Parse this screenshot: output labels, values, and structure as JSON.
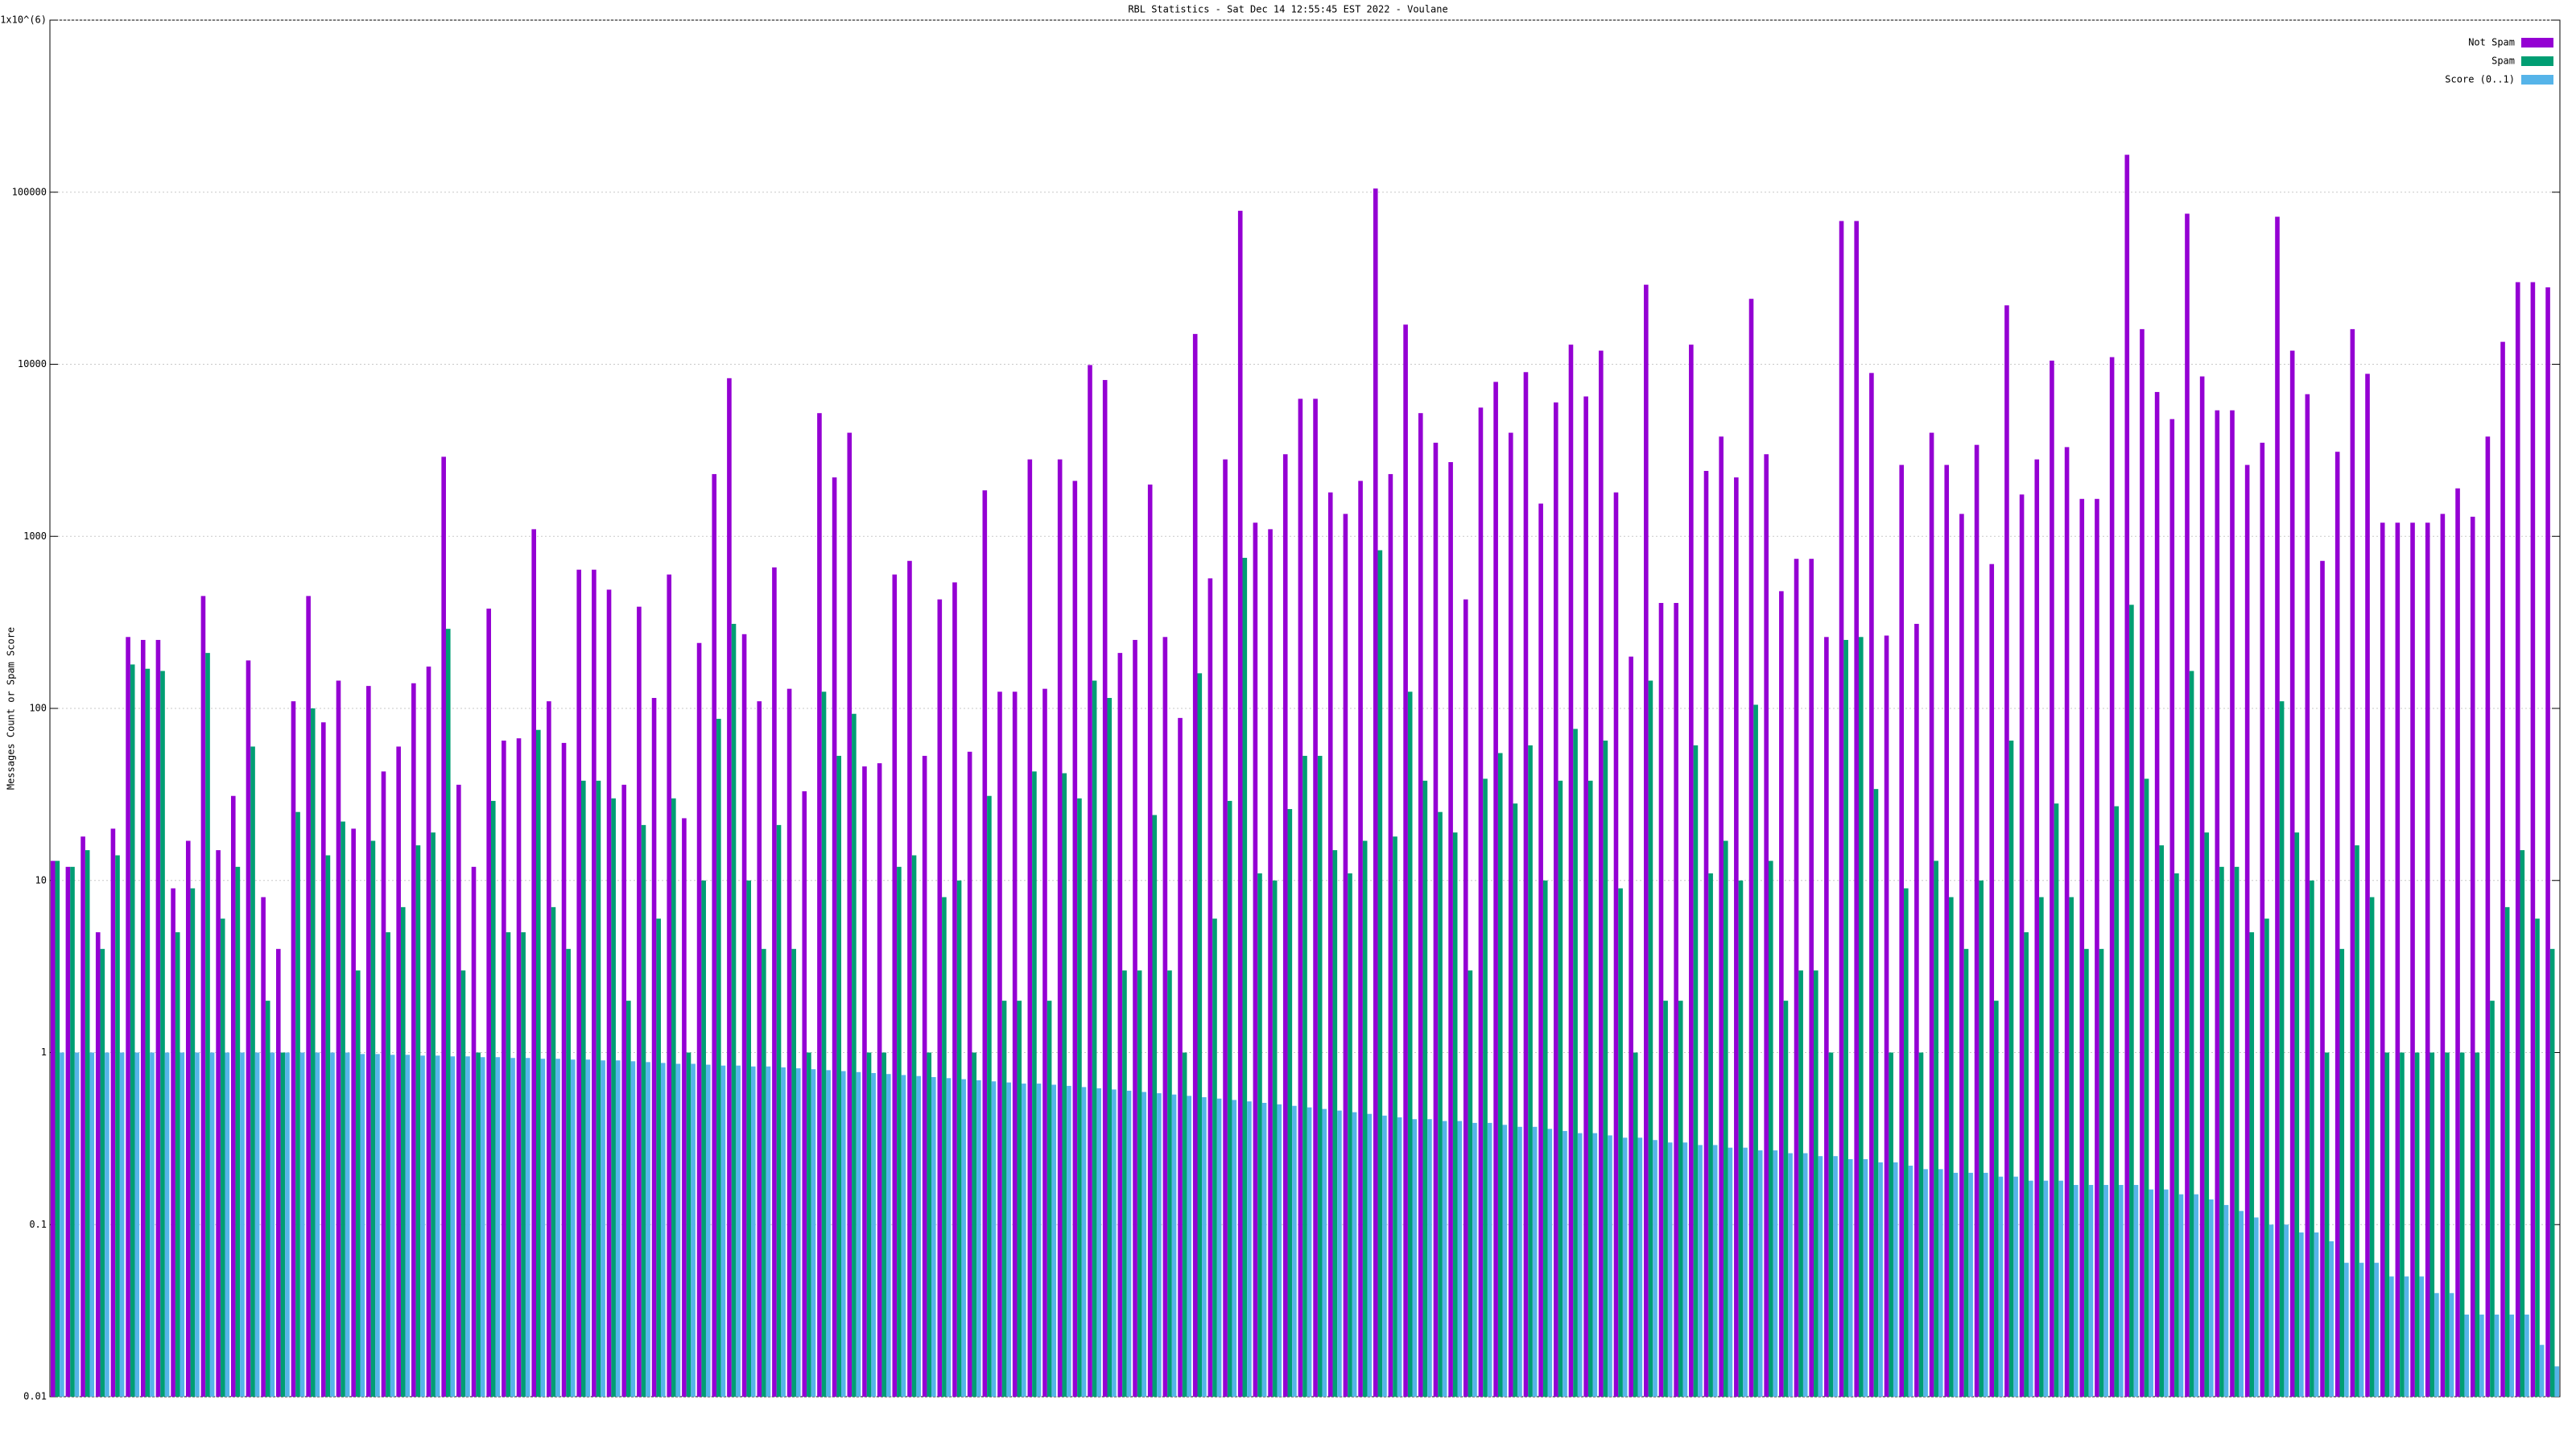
{
  "chart_data": {
    "type": "bar",
    "title": "RBL Statistics - Sat Dec 14 12:55:45 EST 2022 - Voulane",
    "y_label": "Messages Count or Spam Score",
    "log_y": true,
    "grid": true,
    "legend": "top-right",
    "ylim": [
      0.01,
      1000000
    ],
    "yticks": [
      0.01,
      0.1,
      1,
      10,
      100,
      1000,
      10000,
      100000,
      {
        "value": 1000000,
        "label": "1x10^(6)"
      }
    ],
    "series": [
      {
        "name": "Not Spam",
        "color": "#9400d3",
        "values": [
          13,
          12,
          18,
          5,
          20,
          260,
          250,
          250,
          9,
          17,
          450,
          15,
          31,
          190,
          8,
          4,
          110,
          450,
          83,
          145,
          20,
          135,
          43,
          60,
          140,
          175,
          2900,
          36,
          12,
          380,
          65,
          67,
          1100,
          110,
          63,
          640,
          640,
          490,
          36,
          390,
          115,
          600,
          23,
          240,
          2300,
          8300,
          270,
          110,
          660,
          130,
          33,
          5200,
          2200,
          4000,
          46,
          48,
          600,
          720,
          53,
          430,
          540,
          56,
          1850,
          125,
          125,
          2800,
          130,
          2800,
          2100,
          9900,
          8100,
          210,
          250,
          2000,
          260,
          88,
          15000,
          570,
          2800,
          78000,
          1200,
          1100,
          3000,
          6300,
          6300,
          1800,
          1350,
          2100,
          105000,
          2300,
          17000,
          5200,
          3500,
          2700,
          430,
          5600,
          7900,
          4000,
          9000,
          1550,
          6000,
          13000,
          6500,
          12000,
          1800,
          200,
          29000,
          410,
          410,
          13000,
          2400,
          3800,
          2200,
          24000,
          3000,
          480,
          740,
          740,
          260,
          68000,
          68000,
          8900,
          265,
          2600,
          310,
          4000,
          2600,
          1350,
          3400,
          690,
          22000,
          1750,
          2800,
          10500,
          3300,
          1650,
          1650,
          11000,
          165000,
          16000,
          6900,
          4800,
          75000,
          8500,
          5400,
          5400,
          2600,
          3500,
          72000,
          12000,
          6700,
          720,
          3100,
          16000,
          8800,
          1200,
          1200,
          1200,
          1200,
          1350,
          1900,
          1300,
          3800,
          13500,
          30000,
          30000,
          28000
        ]
      },
      {
        "name": "Spam",
        "color": "#009e73",
        "values": [
          13,
          12,
          15,
          4,
          14,
          180,
          170,
          165,
          5,
          9,
          210,
          6,
          12,
          60,
          2,
          1,
          25,
          100,
          14,
          22,
          3,
          17,
          5,
          7,
          16,
          19,
          290,
          3,
          1,
          29,
          5,
          5,
          75,
          7,
          4,
          38,
          38,
          30,
          2,
          21,
          6,
          30,
          1,
          10,
          87,
          310,
          10,
          4,
          21,
          4,
          1,
          125,
          53,
          93,
          1,
          1,
          12,
          14,
          1,
          8,
          10,
          1,
          31,
          2,
          2,
          43,
          2,
          42,
          30,
          145,
          115,
          3,
          3,
          24,
          3,
          1,
          160,
          6,
          29,
          750,
          11,
          10,
          26,
          53,
          53,
          15,
          11,
          17,
          830,
          18,
          125,
          38,
          25,
          19,
          3,
          39,
          55,
          28,
          61,
          10,
          38,
          76,
          38,
          65,
          9,
          1,
          145,
          2,
          2,
          61,
          11,
          17,
          10,
          105,
          13,
          2,
          3,
          3,
          1,
          250,
          260,
          34,
          1,
          9,
          1,
          13,
          8,
          4,
          10,
          2,
          65,
          5,
          8,
          28,
          8,
          4,
          4,
          27,
          400,
          39,
          16,
          11,
          165,
          19,
          12,
          12,
          5,
          6,
          110,
          19,
          10,
          1,
          4,
          16,
          8,
          1,
          1,
          1,
          1,
          1,
          1,
          1,
          2,
          7,
          15,
          6,
          4
        ]
      },
      {
        "name": "Score (0..1)",
        "color": "#56b4e9",
        "values": [
          1,
          1,
          1,
          1,
          1,
          1,
          1,
          1,
          1,
          1,
          1,
          1,
          1,
          1,
          1,
          1,
          1,
          1,
          1,
          1,
          0.98,
          0.98,
          0.97,
          0.97,
          0.96,
          0.96,
          0.95,
          0.95,
          0.94,
          0.94,
          0.93,
          0.93,
          0.92,
          0.92,
          0.91,
          0.91,
          0.9,
          0.9,
          0.89,
          0.88,
          0.87,
          0.86,
          0.86,
          0.85,
          0.84,
          0.84,
          0.83,
          0.83,
          0.82,
          0.81,
          0.8,
          0.79,
          0.78,
          0.77,
          0.76,
          0.75,
          0.74,
          0.73,
          0.72,
          0.71,
          0.7,
          0.69,
          0.68,
          0.67,
          0.66,
          0.66,
          0.65,
          0.64,
          0.63,
          0.62,
          0.61,
          0.6,
          0.59,
          0.58,
          0.57,
          0.56,
          0.55,
          0.54,
          0.53,
          0.52,
          0.51,
          0.5,
          0.49,
          0.48,
          0.47,
          0.46,
          0.45,
          0.44,
          0.43,
          0.42,
          0.41,
          0.41,
          0.4,
          0.4,
          0.39,
          0.39,
          0.38,
          0.37,
          0.37,
          0.36,
          0.35,
          0.34,
          0.34,
          0.33,
          0.32,
          0.32,
          0.31,
          0.3,
          0.3,
          0.29,
          0.29,
          0.28,
          0.28,
          0.27,
          0.27,
          0.26,
          0.26,
          0.25,
          0.25,
          0.24,
          0.24,
          0.23,
          0.23,
          0.22,
          0.21,
          0.21,
          0.2,
          0.2,
          0.2,
          0.19,
          0.19,
          0.18,
          0.18,
          0.18,
          0.17,
          0.17,
          0.17,
          0.17,
          0.17,
          0.16,
          0.16,
          0.15,
          0.15,
          0.14,
          0.13,
          0.12,
          0.11,
          0.1,
          0.1,
          0.09,
          0.09,
          0.08,
          0.06,
          0.06,
          0.06,
          0.05,
          0.05,
          0.05,
          0.04,
          0.04,
          0.03,
          0.03,
          0.03,
          0.03,
          0.03,
          0.02,
          0.015
        ]
      }
    ]
  }
}
